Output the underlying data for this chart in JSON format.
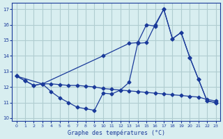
{
  "title": "Graphe des températures (°C)",
  "bg_color": "#d8eef0",
  "grid_color": "#b0ccd0",
  "line_color": "#1a3a9a",
  "xlim": [
    -0.5,
    23.5
  ],
  "ylim": [
    9.8,
    17.4
  ],
  "yticks": [
    10,
    11,
    12,
    13,
    14,
    15,
    16,
    17
  ],
  "xticks": [
    0,
    1,
    2,
    3,
    4,
    5,
    6,
    7,
    8,
    9,
    10,
    11,
    12,
    13,
    14,
    15,
    16,
    17,
    18,
    19,
    20,
    21,
    22,
    23
  ],
  "series": [
    {
      "x": [
        0,
        1,
        2,
        3,
        4,
        5,
        6,
        7,
        8,
        9,
        10,
        11,
        12,
        13,
        14,
        15,
        16,
        17,
        18,
        19,
        20,
        21,
        22,
        23
      ],
      "y": [
        12.7,
        12.4,
        12.1,
        12.2,
        12.2,
        12.15,
        12.1,
        12.1,
        12.05,
        12.0,
        11.9,
        11.85,
        11.8,
        11.75,
        11.7,
        11.65,
        11.6,
        11.55,
        11.5,
        11.45,
        11.4,
        11.35,
        11.2,
        11.1
      ]
    },
    {
      "x": [
        0,
        3,
        10,
        13,
        14,
        15,
        16,
        17,
        18,
        19,
        20,
        21,
        22,
        23
      ],
      "y": [
        12.7,
        12.2,
        14.0,
        14.8,
        14.85,
        16.0,
        15.9,
        17.0,
        15.1,
        15.5,
        13.9,
        12.5,
        11.1,
        11.0
      ]
    },
    {
      "x": [
        0,
        1,
        2,
        3,
        4,
        5,
        6,
        7,
        8,
        9,
        10,
        11,
        12,
        13,
        14,
        15,
        16,
        17,
        18,
        19,
        20,
        21,
        22,
        23
      ],
      "y": [
        12.7,
        12.4,
        12.1,
        12.2,
        11.7,
        11.3,
        11.0,
        10.7,
        10.6,
        10.5,
        11.6,
        11.55,
        11.8,
        12.3,
        14.8,
        14.85,
        16.0,
        17.0,
        15.1,
        15.5,
        13.9,
        12.5,
        11.1,
        11.0
      ]
    }
  ]
}
